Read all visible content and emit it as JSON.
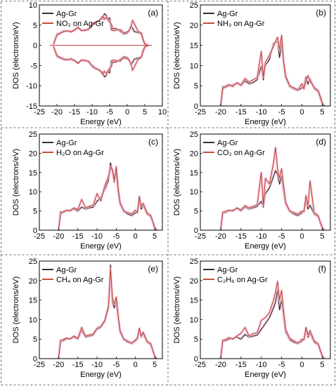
{
  "figure": {
    "colors": {
      "ref": "#1a1a1a",
      "ads": "#c0392b",
      "halo": "#f2c6d8"
    }
  },
  "chart_data": [
    {
      "type": "line",
      "panel": "(a)",
      "xlabel": "Energy (eV)",
      "ylabel": "DOS (electrons/eV)",
      "xlim": [
        -25,
        10
      ],
      "ylim": [
        -15,
        10
      ],
      "xticks": [
        -25,
        -20,
        -15,
        -10,
        -5,
        0,
        5,
        10
      ],
      "yticks": [
        -15,
        -10,
        -5,
        0,
        5,
        10
      ],
      "grid": false,
      "legend": "top-left",
      "series": [
        {
          "name": "Ag-Gr",
          "color": "#1a1a1a",
          "x": [
            -21,
            -20,
            -19,
            -18,
            -17,
            -16,
            -15,
            -14,
            -13,
            -12,
            -11,
            -10,
            -9,
            -8,
            -7,
            -6.5,
            -6,
            -5.5,
            -5,
            -4.5,
            -4,
            -3,
            -2,
            -1,
            0,
            0.5,
            1,
            1.5,
            2,
            3,
            4,
            4.5,
            5,
            6
          ],
          "y": [
            0.3,
            2.8,
            3.2,
            3.6,
            3.5,
            3.5,
            3.9,
            4.2,
            3.8,
            3.6,
            4.2,
            4.9,
            5.6,
            6.2,
            6.6,
            7.8,
            7.5,
            6.5,
            6.8,
            3.8,
            4.2,
            4.1,
            3.5,
            2.8,
            3.0,
            3.4,
            4.8,
            4.3,
            3.4,
            3.2,
            2.8,
            1.2,
            0.3,
            0
          ]
        },
        {
          "name": "NO₂ on Ag-Gr",
          "color": "#c0392b",
          "x": [
            -21,
            -20,
            -19,
            -18,
            -17,
            -16,
            -15,
            -14,
            -13,
            -12,
            -11,
            -10,
            -9,
            -8,
            -7,
            -6.5,
            -6,
            -5.5,
            -5,
            -4.5,
            -4,
            -3,
            -2,
            -1,
            0,
            0.5,
            1,
            1.5,
            2,
            3,
            4,
            4.5,
            5,
            6
          ],
          "y": [
            0.2,
            2.5,
            3.0,
            3.4,
            3.6,
            3.3,
            3.7,
            4.5,
            3.6,
            3.8,
            3.9,
            5.2,
            5.8,
            6.0,
            7.2,
            6.4,
            7.0,
            6.3,
            5.7,
            5.2,
            3.6,
            3.8,
            3.9,
            3.1,
            3.3,
            3.7,
            4.3,
            6.2,
            5.4,
            3.6,
            3.0,
            1.6,
            0.4,
            0
          ]
        }
      ],
      "mirror_negative": true
    },
    {
      "type": "line",
      "panel": "(b)",
      "xlabel": "Energy (eV)",
      "ylabel": "DOS (electrons/eV)",
      "xlim": [
        -25,
        7
      ],
      "ylim": [
        0,
        25
      ],
      "xticks": [
        -25,
        -20,
        -15,
        -10,
        -5,
        0,
        5
      ],
      "yticks": [
        0,
        5,
        10,
        15,
        20,
        25
      ],
      "grid": false,
      "legend": "top-left",
      "series": [
        {
          "name": "Ag-Gr",
          "color": "#1a1a1a",
          "x": [
            -20,
            -19.5,
            -19,
            -18,
            -17,
            -16,
            -15,
            -14,
            -13,
            -12,
            -11,
            -10,
            -9.5,
            -9,
            -8,
            -7,
            -6,
            -5.5,
            -5,
            -4.5,
            -4,
            -3,
            -2,
            -1,
            0,
            0.5,
            1,
            1.5,
            2,
            3,
            4,
            4.5,
            5,
            5.5
          ],
          "y": [
            0,
            4.8,
            4.5,
            5.0,
            5.2,
            5.6,
            5.0,
            6.2,
            5.5,
            5.8,
            6.5,
            9.8,
            6.5,
            10.0,
            11.5,
            15.5,
            16.0,
            12.0,
            15.5,
            10.5,
            7.0,
            4.8,
            4.2,
            3.8,
            4.5,
            5.0,
            7.2,
            5.4,
            6.8,
            4.3,
            3.5,
            2.0,
            0.5,
            0
          ]
        },
        {
          "name": "NH₃ on Ag-Gr",
          "color": "#c0392b",
          "x": [
            -20,
            -19.5,
            -19,
            -18,
            -17,
            -16,
            -15,
            -14,
            -13,
            -12,
            -11,
            -10,
            -9.5,
            -9,
            -8,
            -7,
            -6,
            -5.5,
            -5,
            -4.5,
            -4,
            -3,
            -2,
            -1,
            0,
            0.5,
            1,
            1.5,
            2,
            3,
            4,
            4.5,
            5,
            5.5
          ],
          "y": [
            0,
            4.2,
            4.8,
            5.3,
            4.8,
            5.8,
            5.2,
            6.8,
            5.9,
            6.5,
            7.0,
            13.5,
            7.2,
            10.8,
            12.5,
            14.8,
            17.0,
            14.0,
            17.5,
            11.0,
            7.4,
            5.0,
            4.5,
            4.0,
            5.5,
            4.2,
            6.2,
            7.5,
            6.2,
            4.6,
            3.8,
            2.4,
            0.8,
            0
          ]
        }
      ]
    },
    {
      "type": "line",
      "panel": "(c)",
      "xlabel": "Energy (eV)",
      "ylabel": "DOS (electrons/eV)",
      "xlim": [
        -25,
        7
      ],
      "ylim": [
        0,
        25
      ],
      "xticks": [
        -25,
        -20,
        -15,
        -10,
        -5,
        0,
        5
      ],
      "yticks": [
        0,
        5,
        10,
        15,
        20,
        25
      ],
      "grid": false,
      "legend": "top-left",
      "series": [
        {
          "name": "Ag-Gr",
          "color": "#1a1a1a",
          "x": [
            -20,
            -19.5,
            -19,
            -18,
            -17,
            -16,
            -15,
            -14,
            -13,
            -12,
            -11,
            -10,
            -9,
            -8,
            -7,
            -6.5,
            -6,
            -5.5,
            -5,
            -4.5,
            -4,
            -3,
            -2,
            -1,
            0,
            0.5,
            1,
            1.5,
            2,
            3,
            4,
            4.5,
            5,
            5.5
          ],
          "y": [
            0,
            4.8,
            4.5,
            5.0,
            5.3,
            5.5,
            5.0,
            6.0,
            5.5,
            5.8,
            6.0,
            7.5,
            8.5,
            10.5,
            13.0,
            17.5,
            15.0,
            12.5,
            15.0,
            10.0,
            6.8,
            4.8,
            4.2,
            3.8,
            4.5,
            5.0,
            7.5,
            5.5,
            6.5,
            4.2,
            3.5,
            2.0,
            0.5,
            0
          ]
        },
        {
          "name": "H₂O on Ag-Gr",
          "color": "#c0392b",
          "x": [
            -20,
            -19.5,
            -19,
            -18,
            -17,
            -16,
            -15,
            -14,
            -13,
            -12,
            -11,
            -10,
            -9,
            -8,
            -7,
            -6.5,
            -6,
            -5.5,
            -5,
            -4.5,
            -4,
            -3,
            -2,
            -1,
            0,
            0.5,
            1,
            1.5,
            2,
            3,
            4,
            4.5,
            5,
            5.5
          ],
          "y": [
            0,
            4.3,
            4.7,
            5.2,
            5.0,
            5.8,
            5.4,
            8.0,
            5.8,
            6.2,
            6.5,
            9.5,
            7.6,
            11.5,
            14.0,
            16.5,
            15.8,
            13.0,
            16.5,
            11.0,
            7.2,
            5.0,
            4.6,
            4.2,
            5.2,
            4.5,
            8.8,
            6.2,
            7.0,
            4.5,
            3.8,
            2.2,
            0.8,
            0
          ]
        }
      ]
    },
    {
      "type": "line",
      "panel": "(d)",
      "xlabel": "Energy (eV)",
      "ylabel": "DOS (electrons/eV)",
      "xlim": [
        -25,
        7
      ],
      "ylim": [
        0,
        25
      ],
      "xticks": [
        -25,
        -20,
        -15,
        -10,
        -5,
        0,
        5
      ],
      "yticks": [
        0,
        5,
        10,
        15,
        20,
        25
      ],
      "grid": false,
      "legend": "top-left",
      "series": [
        {
          "name": "Ag-Gr",
          "color": "#1a1a1a",
          "x": [
            -20,
            -19.5,
            -19,
            -18,
            -17,
            -16,
            -15,
            -14,
            -13,
            -12,
            -11,
            -10,
            -9.5,
            -9,
            -8,
            -7,
            -6.5,
            -6,
            -5.5,
            -5,
            -4.5,
            -4,
            -3,
            -2,
            -1,
            0,
            0.5,
            1,
            1.5,
            2,
            3,
            4,
            4.5,
            5,
            5.5
          ],
          "y": [
            0,
            4.8,
            4.5,
            5.0,
            5.2,
            5.6,
            5.0,
            6.0,
            5.5,
            5.8,
            6.2,
            7.5,
            6.0,
            9.5,
            11.0,
            14.0,
            15.5,
            14.5,
            12.0,
            14.0,
            10.0,
            6.8,
            4.8,
            4.2,
            3.8,
            4.5,
            5.0,
            7.5,
            5.5,
            6.5,
            4.2,
            3.5,
            2.0,
            0.5,
            0
          ]
        },
        {
          "name": "CO₂ on Ag-Gr",
          "color": "#c0392b",
          "x": [
            -20,
            -19.5,
            -19,
            -18,
            -17,
            -16,
            -15,
            -14,
            -13,
            -12,
            -11,
            -10,
            -9.5,
            -9,
            -8,
            -7,
            -6.5,
            -6,
            -5.5,
            -5,
            -4.5,
            -4,
            -3,
            -2,
            -1,
            0,
            0.5,
            1,
            1.5,
            2,
            3,
            4,
            4.5,
            5,
            5.5
          ],
          "y": [
            0,
            4.5,
            4.8,
            5.2,
            5.0,
            5.8,
            5.3,
            6.4,
            5.8,
            6.2,
            6.6,
            15.0,
            6.5,
            13.5,
            12.0,
            17.5,
            21.5,
            16.0,
            13.5,
            16.0,
            11.5,
            7.2,
            5.0,
            4.6,
            4.2,
            5.0,
            4.8,
            9.0,
            6.5,
            12.8,
            4.6,
            3.8,
            2.2,
            0.8,
            0
          ]
        }
      ]
    },
    {
      "type": "line",
      "panel": "(e)",
      "xlabel": "Energy (eV)",
      "ylabel": "DOS (electrons/eV)",
      "xlim": [
        -25,
        7
      ],
      "ylim": [
        0,
        25
      ],
      "xticks": [
        -25,
        -20,
        -15,
        -10,
        -5,
        0,
        5
      ],
      "yticks": [
        0,
        5,
        10,
        15,
        20,
        25
      ],
      "grid": false,
      "legend": "top-left",
      "series": [
        {
          "name": "Ag-Gr",
          "color": "#1a1a1a",
          "x": [
            -20,
            -19.5,
            -19,
            -18,
            -17,
            -16,
            -15,
            -14,
            -13,
            -12,
            -11,
            -10,
            -9,
            -8,
            -7,
            -6.5,
            -6,
            -5.5,
            -5,
            -4.5,
            -4,
            -3,
            -2,
            -1,
            0,
            0.5,
            1,
            1.5,
            2,
            3,
            4,
            4.5,
            5,
            5.5
          ],
          "y": [
            0,
            4.8,
            4.5,
            5.0,
            5.2,
            5.5,
            5.0,
            7.2,
            5.5,
            5.8,
            6.0,
            7.5,
            8.0,
            9.5,
            13.0,
            24.0,
            14.5,
            13.0,
            15.0,
            10.5,
            6.8,
            4.8,
            4.2,
            3.8,
            4.5,
            5.0,
            7.5,
            5.5,
            6.5,
            4.2,
            3.5,
            2.0,
            0.5,
            0
          ]
        },
        {
          "name": "CH₄ on Ag-Gr",
          "color": "#c0392b",
          "x": [
            -20,
            -19.5,
            -19,
            -18,
            -17,
            -16,
            -15,
            -14,
            -13,
            -12,
            -11,
            -10,
            -9,
            -8,
            -7,
            -6.5,
            -6,
            -5.5,
            -5,
            -4.5,
            -4,
            -3,
            -2,
            -1,
            0,
            0.5,
            1,
            1.5,
            2,
            3,
            4,
            4.5,
            5,
            5.5
          ],
          "y": [
            0,
            4.5,
            4.8,
            5.3,
            5.0,
            5.8,
            5.2,
            8.0,
            5.8,
            6.1,
            6.3,
            7.8,
            8.3,
            9.8,
            13.5,
            23.0,
            15.5,
            14.0,
            15.8,
            11.0,
            7.2,
            5.0,
            4.5,
            4.0,
            4.8,
            5.3,
            7.8,
            5.8,
            6.8,
            4.5,
            3.8,
            2.2,
            0.7,
            0
          ]
        }
      ]
    },
    {
      "type": "line",
      "panel": "(f)",
      "xlabel": "Energy (eV)",
      "ylabel": "DOS (electrons/eV)",
      "xlim": [
        -25,
        7
      ],
      "ylim": [
        0,
        25
      ],
      "xticks": [
        -25,
        -20,
        -15,
        -10,
        -5,
        0,
        5
      ],
      "yticks": [
        0,
        5,
        10,
        15,
        20,
        25
      ],
      "grid": false,
      "legend": "top-left",
      "series": [
        {
          "name": "Ag-Gr",
          "color": "#1a1a1a",
          "x": [
            -20,
            -19.5,
            -19,
            -18,
            -17,
            -16,
            -15,
            -14,
            -13,
            -12,
            -11,
            -10,
            -9,
            -8,
            -7,
            -6.5,
            -6,
            -5.5,
            -5,
            -4.5,
            -4,
            -3,
            -2,
            -1,
            0,
            0.5,
            1,
            1.5,
            2,
            3,
            4,
            4.5,
            5,
            5.5
          ],
          "y": [
            0,
            4.8,
            4.5,
            5.0,
            5.2,
            5.5,
            5.0,
            6.2,
            5.5,
            5.8,
            6.0,
            7.5,
            9.0,
            10.5,
            13.0,
            14.5,
            17.5,
            12.5,
            15.0,
            10.5,
            6.8,
            4.8,
            4.2,
            3.8,
            4.5,
            5.0,
            7.5,
            5.5,
            6.5,
            4.2,
            3.5,
            2.0,
            0.5,
            0
          ]
        },
        {
          "name": "C₂H₆ on Ag-Gr",
          "color": "#c0392b",
          "x": [
            -20,
            -19.5,
            -19,
            -18,
            -17,
            -16,
            -15,
            -14,
            -13,
            -12,
            -11,
            -10,
            -9,
            -8,
            -7,
            -6.5,
            -6,
            -5.5,
            -5,
            -4.5,
            -4,
            -3,
            -2,
            -1,
            0,
            0.5,
            1,
            1.5,
            2,
            3,
            4,
            4.5,
            5,
            5.5
          ],
          "y": [
            0,
            4.5,
            4.8,
            5.4,
            5.0,
            5.8,
            6.5,
            8.0,
            5.8,
            6.4,
            6.6,
            9.8,
            10.5,
            11.8,
            15.0,
            17.0,
            19.8,
            15.0,
            17.5,
            12.0,
            7.5,
            5.2,
            4.6,
            4.0,
            5.0,
            4.8,
            8.0,
            6.0,
            7.2,
            4.6,
            3.8,
            2.3,
            0.8,
            0
          ]
        }
      ]
    }
  ]
}
